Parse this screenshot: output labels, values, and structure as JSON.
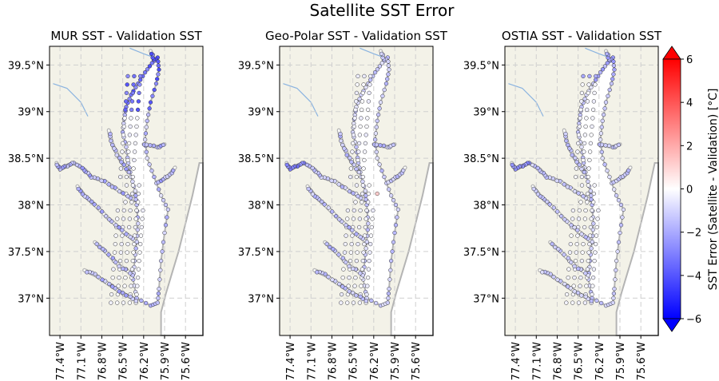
{
  "figure": {
    "title": "Satellite SST Error",
    "panels": [
      {
        "title": "MUR SST - Validation SST",
        "dominant": "mur"
      },
      {
        "title": "Geo-Polar SST - Validation SST",
        "dominant": "geo"
      },
      {
        "title": "OSTIA SST - Validation SST",
        "dominant": "ostia"
      }
    ],
    "lat_ticks": [
      "39.5°N",
      "39°N",
      "38.5°N",
      "38°N",
      "37.5°N",
      "37°N"
    ],
    "lon_ticks": [
      "77.4°W",
      "77.1°W",
      "76.8°W",
      "76.5°W",
      "76.2°W",
      "75.9°W",
      "75.6°W"
    ],
    "colorbar": {
      "label": "SST Error (Satellite - Validation) [°C]",
      "ticks": [
        "6",
        "4",
        "2",
        "0",
        "−2",
        "−4",
        "−6"
      ],
      "min": -6,
      "max": 6,
      "colormap": "bwr",
      "extend": "both"
    },
    "colors": {
      "land": "#f3f2e8",
      "water": "#ffffff",
      "shoreline": "#b4b4b4",
      "rivers": "#8ab3e0",
      "gridlines": "#cfcfcf",
      "marker_edge": "#333333"
    }
  },
  "chart_data": {
    "type": "scatter",
    "title": "Satellite SST Error",
    "xlim": [
      -77.55,
      -75.35
    ],
    "ylim": [
      36.6,
      39.7
    ],
    "xticks": [
      -77.4,
      -77.1,
      -76.8,
      -76.5,
      -76.2,
      -75.9,
      -75.6
    ],
    "yticks": [
      39.5,
      39.0,
      38.5,
      38.0,
      37.5,
      37.0
    ],
    "grid": true,
    "colorbar_range": [
      -6,
      6
    ],
    "panels": [
      {
        "name": "MUR SST - Validation SST",
        "points_description": "Validation stations across Chesapeake Bay and tributaries; upper bay stations strongly negative (≈ -2 to -4 °C), main stem mostly near 0 °C",
        "typical_error_range": [
          -4,
          0.5
        ]
      },
      {
        "name": "Geo-Polar SST - Validation SST",
        "points_description": "Mostly small negative errors (≈ -1 to -2 °C); Potomac upper reaches near -3 °C; isolated slightly positive point near 38.1°N, 76.2°W",
        "typical_error_range": [
          -3,
          1
        ]
      },
      {
        "name": "OSTIA SST - Validation SST",
        "points_description": "Mostly small negative errors (≈ -1 to -2 °C) with darker points in upper Potomac and northern bay",
        "typical_error_range": [
          -3,
          0.5
        ]
      }
    ]
  }
}
